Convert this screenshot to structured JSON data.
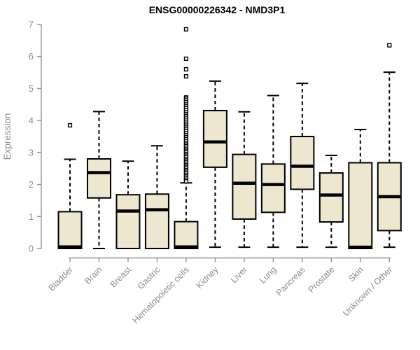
{
  "chart_data": {
    "type": "boxplot",
    "title": "ENSG00000226342 - NMD3P1",
    "ylabel": "Expression",
    "xlabel": "",
    "ylim": [
      0,
      7
    ],
    "yticks": [
      0,
      1,
      2,
      3,
      4,
      5,
      6,
      7
    ],
    "grid": false,
    "legend": false,
    "categories": [
      "Bladder",
      "Brain",
      "Breast",
      "Gastric",
      "Hematopoietic cells",
      "Kidney",
      "Liver",
      "Lung",
      "Pancreas",
      "Prostate",
      "Skin",
      "Unknown / Other"
    ],
    "boxes": [
      {
        "label": "Bladder",
        "whisker_low": null,
        "q1": 0,
        "median": 0.05,
        "q3": 1.15,
        "whisker_high": 2.79,
        "outliers": [
          3.85
        ]
      },
      {
        "label": "Brain",
        "whisker_low": 0,
        "q1": 1.58,
        "median": 2.37,
        "q3": 2.8,
        "whisker_high": 4.28,
        "outliers": []
      },
      {
        "label": "Breast",
        "whisker_low": null,
        "q1": 0,
        "median": 1.17,
        "q3": 1.68,
        "whisker_high": 2.73,
        "outliers": []
      },
      {
        "label": "Gastric",
        "whisker_low": null,
        "q1": 0,
        "median": 1.21,
        "q3": 1.7,
        "whisker_high": 3.21,
        "outliers": []
      },
      {
        "label": "Hematopoietic cells",
        "whisker_low": null,
        "q1": 0,
        "median": 0.05,
        "q3": 0.84,
        "whisker_high": 2.05,
        "outliers": [
          6.85,
          5.93,
          5.6,
          5.38,
          4.72,
          4.68,
          4.63,
          4.57,
          4.5,
          4.44,
          4.38,
          4.32,
          4.26,
          4.2,
          4.14,
          4.08,
          4.02,
          3.96,
          3.9,
          3.84,
          3.78,
          3.72,
          3.66,
          3.6,
          3.54,
          3.48,
          3.42,
          3.36,
          3.3,
          3.25,
          3.2,
          3.15,
          3.1,
          3.05,
          3.0,
          2.95,
          2.9,
          2.85,
          2.8,
          2.75,
          2.7,
          2.65,
          2.6,
          2.55,
          2.5,
          2.45,
          2.4,
          2.35,
          2.3,
          2.25,
          2.2,
          2.15,
          2.1
        ]
      },
      {
        "label": "Kidney",
        "whisker_low": 0.04,
        "q1": 2.54,
        "median": 3.33,
        "q3": 4.31,
        "whisker_high": 5.23,
        "outliers": []
      },
      {
        "label": "Liver",
        "whisker_low": 0.04,
        "q1": 0.92,
        "median": 2.04,
        "q3": 2.94,
        "whisker_high": 4.27,
        "outliers": []
      },
      {
        "label": "Lung",
        "whisker_low": 0.04,
        "q1": 1.13,
        "median": 2.0,
        "q3": 2.64,
        "whisker_high": 4.78,
        "outliers": []
      },
      {
        "label": "Pancreas",
        "whisker_low": 0.04,
        "q1": 1.85,
        "median": 2.57,
        "q3": 3.5,
        "whisker_high": 5.16,
        "outliers": []
      },
      {
        "label": "Prostate",
        "whisker_low": 0.04,
        "q1": 0.83,
        "median": 1.67,
        "q3": 2.36,
        "whisker_high": 2.91,
        "outliers": []
      },
      {
        "label": "Skin",
        "whisker_low": null,
        "q1": 0,
        "median": 0.04,
        "q3": 2.68,
        "whisker_high": 3.72,
        "outliers": []
      },
      {
        "label": "Unknown / Other",
        "whisker_low": 0.04,
        "q1": 0.56,
        "median": 1.62,
        "q3": 2.68,
        "whisker_high": 5.51,
        "outliers": [
          6.35
        ]
      }
    ],
    "colors": {
      "box_fill": "#ede7cf",
      "box_stroke": "#000000",
      "median": "#000000",
      "whisker": "#000000",
      "outlier_stroke": "#000000",
      "axis": "#939393",
      "text_gray": "#8c8c8c",
      "title": "#000000",
      "background": "#ffffff"
    }
  }
}
